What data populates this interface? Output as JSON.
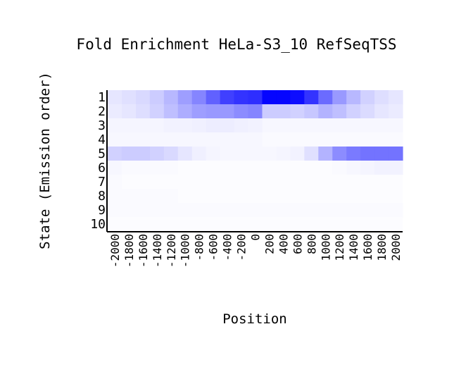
{
  "chart_data": {
    "type": "heatmap",
    "title": "Fold Enrichment HeLa-S3_10 RefSeqTSS",
    "xlabel": "Position",
    "ylabel": "State (Emission order)",
    "rows": [
      "1",
      "2",
      "3",
      "4",
      "5",
      "6",
      "7",
      "8",
      "9",
      "10"
    ],
    "columns": [
      "-2000",
      "-1800",
      "-1600",
      "-1400",
      "-1200",
      "-1000",
      "-800",
      "-600",
      "-400",
      "-200",
      "0",
      "200",
      "400",
      "600",
      "800",
      "1000",
      "1200",
      "1400",
      "1600",
      "1800",
      "2000"
    ],
    "color_low": "#ffffff",
    "color_high": "#0000ff",
    "values": [
      [
        0.1,
        0.12,
        0.15,
        0.2,
        0.28,
        0.38,
        0.48,
        0.62,
        0.75,
        0.8,
        0.82,
        0.98,
        0.98,
        0.95,
        0.8,
        0.58,
        0.4,
        0.28,
        0.18,
        0.13,
        0.1
      ],
      [
        0.08,
        0.1,
        0.13,
        0.18,
        0.25,
        0.32,
        0.38,
        0.4,
        0.4,
        0.45,
        0.48,
        0.2,
        0.2,
        0.18,
        0.22,
        0.3,
        0.25,
        0.18,
        0.14,
        0.1,
        0.08
      ],
      [
        0.04,
        0.04,
        0.04,
        0.04,
        0.05,
        0.05,
        0.06,
        0.07,
        0.07,
        0.06,
        0.05,
        0.03,
        0.03,
        0.03,
        0.03,
        0.03,
        0.03,
        0.03,
        0.03,
        0.03,
        0.03
      ],
      [
        0.03,
        0.03,
        0.03,
        0.03,
        0.03,
        0.03,
        0.03,
        0.03,
        0.03,
        0.03,
        0.03,
        0.02,
        0.02,
        0.02,
        0.02,
        0.02,
        0.02,
        0.02,
        0.02,
        0.02,
        0.02
      ],
      [
        0.18,
        0.2,
        0.2,
        0.18,
        0.15,
        0.1,
        0.06,
        0.04,
        0.03,
        0.03,
        0.03,
        0.03,
        0.04,
        0.05,
        0.12,
        0.3,
        0.45,
        0.52,
        0.55,
        0.55,
        0.55
      ],
      [
        0.03,
        0.02,
        0.02,
        0.02,
        0.02,
        0.01,
        0.01,
        0.01,
        0.01,
        0.01,
        0.01,
        0.01,
        0.01,
        0.01,
        0.01,
        0.01,
        0.02,
        0.03,
        0.04,
        0.05,
        0.05
      ],
      [
        0.02,
        0.01,
        0.01,
        0.01,
        0.01,
        0.01,
        0.01,
        0.01,
        0.01,
        0.01,
        0.01,
        0.01,
        0.01,
        0.01,
        0.01,
        0.01,
        0.01,
        0.01,
        0.01,
        0.01,
        0.01
      ],
      [
        0.02,
        0.02,
        0.02,
        0.02,
        0.02,
        0.01,
        0.01,
        0.01,
        0.01,
        0.01,
        0.01,
        0.01,
        0.01,
        0.01,
        0.01,
        0.01,
        0.01,
        0.01,
        0.01,
        0.01,
        0.01
      ],
      [
        0.02,
        0.02,
        0.02,
        0.02,
        0.02,
        0.02,
        0.02,
        0.02,
        0.02,
        0.02,
        0.02,
        0.02,
        0.02,
        0.02,
        0.02,
        0.02,
        0.02,
        0.02,
        0.02,
        0.02,
        0.02
      ],
      [
        0.01,
        0.01,
        0.01,
        0.01,
        0.01,
        0.01,
        0.01,
        0.01,
        0.01,
        0.01,
        0.01,
        0.01,
        0.01,
        0.01,
        0.01,
        0.01,
        0.01,
        0.01,
        0.01,
        0.01,
        0.01
      ]
    ]
  }
}
